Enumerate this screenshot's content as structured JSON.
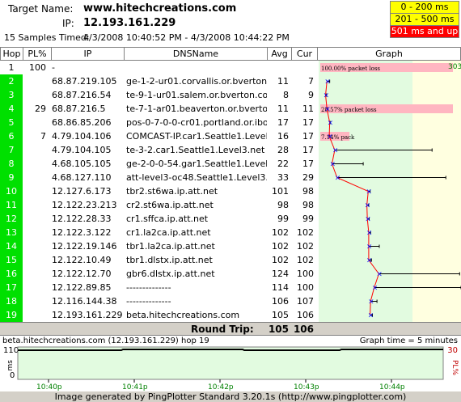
{
  "header": {
    "target_label": "Target Name:",
    "target_value": "www.hitechcreations.com",
    "ip_label": "IP:",
    "ip_value": "12.193.161.229",
    "samples_label": "15 Samples Timed:",
    "samples_value": "4/3/2008 10:40:52 PM - 4/3/2008 10:44:22 PM"
  },
  "legend": [
    {
      "label": "0 - 200 ms",
      "color": "#ffff00",
      "text_color": "#000000"
    },
    {
      "label": "201 - 500 ms",
      "color": "#ffff00",
      "text_color": "#000000"
    },
    {
      "label": "501 ms and up",
      "color": "#ff0000",
      "text_color": "#ffffff"
    }
  ],
  "columns": {
    "hop": "Hop",
    "pl": "PL%",
    "ip": "IP",
    "dns": "DNSName",
    "avg": "Avg",
    "cur": "Cur",
    "graph": "Graph"
  },
  "graph_max_label": "303",
  "hops": [
    {
      "hop": "1",
      "pl": "100",
      "ip": "-",
      "dns": "",
      "avg": "",
      "cur": "",
      "green": false,
      "loss_label": "100.00% packet loss",
      "loss_pct": 100
    },
    {
      "hop": "2",
      "pl": "",
      "ip": "68.87.219.105",
      "dns": "ge-1-2-ur01.corvallis.or.bverton.com",
      "avg": "11",
      "cur": "7",
      "green": true,
      "point": 11,
      "max": 17
    },
    {
      "hop": "3",
      "pl": "",
      "ip": "68.87.216.54",
      "dns": "te-9-1-ur01.salem.or.bverton.comc",
      "avg": "8",
      "cur": "9",
      "green": true,
      "point": 8,
      "max": 10
    },
    {
      "hop": "4",
      "pl": "29",
      "ip": "68.87.216.5",
      "dns": "te-7-1-ar01.beaverton.or.bverton.c",
      "avg": "11",
      "cur": "11",
      "green": true,
      "point": 11,
      "max": 12,
      "loss_label": "28.57% packet loss",
      "loss_pct": 100
    },
    {
      "hop": "5",
      "pl": "",
      "ip": "68.86.85.206",
      "dns": "pos-0-7-0-0-cr01.portland.or.ibone.",
      "avg": "17",
      "cur": "17",
      "green": true,
      "point": 17,
      "max": 18
    },
    {
      "hop": "6",
      "pl": "7",
      "ip": "4.79.104.106",
      "dns": "COMCAST-IP.car1.Seattle1.Level3.n",
      "avg": "16",
      "cur": "17",
      "green": true,
      "point": 16,
      "max": 17,
      "loss_label": "7.14% pack",
      "loss_pct": 22
    },
    {
      "hop": "7",
      "pl": "",
      "ip": "4.79.104.105",
      "dns": "te-3-2.car1.Seattle1.Level3.net",
      "avg": "28",
      "cur": "17",
      "green": true,
      "point": 28,
      "max": 240
    },
    {
      "hop": "8",
      "pl": "",
      "ip": "4.68.105.105",
      "dns": "ge-2-0-0-54.gar1.Seattle1.Level3.n",
      "avg": "22",
      "cur": "17",
      "green": true,
      "point": 22,
      "max": 90
    },
    {
      "hop": "9",
      "pl": "",
      "ip": "4.68.127.110",
      "dns": "att-level3-oc48.Seattle1.Level3.net",
      "avg": "33",
      "pl_cur": "",
      "cur": "29",
      "green": true,
      "point": 33,
      "max": 270
    },
    {
      "hop": "10",
      "pl": "",
      "ip": "12.127.6.173",
      "dns": "tbr2.st6wa.ip.att.net",
      "avg": "101",
      "cur": "98",
      "green": true,
      "point": 101,
      "max": 105
    },
    {
      "hop": "11",
      "pl": "",
      "ip": "12.122.23.213",
      "dns": "cr2.st6wa.ip.att.net",
      "avg": "98",
      "cur": "98",
      "green": true,
      "point": 98,
      "max": 102
    },
    {
      "hop": "12",
      "pl": "",
      "ip": "12.122.28.33",
      "dns": "cr1.sffca.ip.att.net",
      "avg": "99",
      "cur": "99",
      "green": true,
      "point": 99,
      "max": 103
    },
    {
      "hop": "13",
      "pl": "",
      "ip": "12.122.3.122",
      "dns": "cr1.la2ca.ip.att.net",
      "avg": "102",
      "cur": "102",
      "green": true,
      "point": 102,
      "max": 106
    },
    {
      "hop": "14",
      "pl": "",
      "ip": "12.122.19.146",
      "dns": "tbr1.la2ca.ip.att.net",
      "avg": "102",
      "cur": "102",
      "green": true,
      "point": 102,
      "max": 125
    },
    {
      "hop": "15",
      "pl": "",
      "ip": "12.122.10.49",
      "dns": "tbr1.dlstx.ip.att.net",
      "avg": "102",
      "cur": "102",
      "green": true,
      "point": 102,
      "max": 108
    },
    {
      "hop": "16",
      "pl": "",
      "ip": "12.122.12.70",
      "dns": "gbr6.dlstx.ip.att.net",
      "avg": "124",
      "cur": "100",
      "green": true,
      "point": 124,
      "max": 300
    },
    {
      "hop": "17",
      "pl": "",
      "ip": "12.122.89.85",
      "dns": "--------------",
      "avg": "114",
      "cur": "100",
      "green": true,
      "point": 114,
      "max": 320
    },
    {
      "hop": "18",
      "pl": "",
      "ip": "12.116.144.38",
      "dns": "--------------",
      "avg": "106",
      "cur": "107",
      "green": true,
      "point": 106,
      "max": 120
    },
    {
      "hop": "19",
      "pl": "",
      "ip": "12.193.161.229",
      "dns": "beta.hitechcreations.com",
      "avg": "105",
      "cur": "106",
      "green": true,
      "point": 105,
      "max": 110
    }
  ],
  "roundtrip": {
    "label": "Round Trip:",
    "avg": "105",
    "cur": "106"
  },
  "timeline": {
    "title": "beta.hitechcreations.com (12.193.161.229) hop 19",
    "graph_time": "Graph time = 5 minutes",
    "y_max": "110",
    "y_unit": "ms",
    "y_zero": "0",
    "right_max": "30",
    "right_unit": "PL%",
    "x_ticks": [
      "10:40p",
      "10:41p",
      "10:42p",
      "10:43p",
      "10:44p"
    ]
  },
  "footer": "Image generated by PingPlotter Standard 3.20.1s (http://www.pingplotter.com)"
}
